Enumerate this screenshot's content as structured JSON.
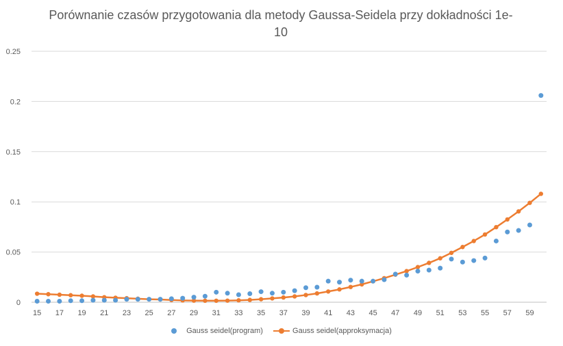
{
  "chart_data": {
    "type": "scatter",
    "title": "Porównanie czasów przygotowania dla metody Gaussa-Seidela przy dokładności 1e-\n10",
    "xlabel": "",
    "ylabel": "",
    "x": [
      15,
      16,
      17,
      18,
      19,
      20,
      21,
      22,
      23,
      24,
      25,
      26,
      27,
      28,
      29,
      30,
      31,
      32,
      33,
      34,
      35,
      36,
      37,
      38,
      39,
      40,
      41,
      42,
      43,
      44,
      45,
      46,
      47,
      48,
      49,
      50,
      51,
      52,
      53,
      54,
      55,
      56,
      57,
      58,
      59,
      60
    ],
    "x_tick_labels": [
      "15",
      "17",
      "19",
      "21",
      "23",
      "25",
      "27",
      "29",
      "31",
      "33",
      "35",
      "37",
      "39",
      "41",
      "43",
      "45",
      "47",
      "49",
      "51",
      "53",
      "55",
      "57",
      "59"
    ],
    "y_tick_labels": [
      "0",
      "0.05",
      "0.1",
      "0.15",
      "0.2",
      "0.25"
    ],
    "ylim": [
      0,
      0.25
    ],
    "xlim": [
      15,
      60
    ],
    "grid": true,
    "legend_position": "bottom",
    "series": [
      {
        "name": "Gauss seidel(program)",
        "style": "markers",
        "color": "#5B9BD5",
        "values": [
          0.001,
          0.001,
          0.001,
          0.0015,
          0.0015,
          0.002,
          0.002,
          0.002,
          0.003,
          0.003,
          0.003,
          0.003,
          0.0035,
          0.004,
          0.005,
          0.006,
          0.01,
          0.009,
          0.0075,
          0.0085,
          0.0105,
          0.009,
          0.01,
          0.0115,
          0.0145,
          0.015,
          0.021,
          0.02,
          0.022,
          0.021,
          0.021,
          0.0225,
          0.028,
          0.027,
          0.031,
          0.032,
          0.034,
          0.043,
          0.04,
          0.0415,
          0.044,
          0.061,
          0.07,
          0.0715,
          0.077,
          0.206
        ]
      },
      {
        "name": "Gauss seidel(approksymacja)",
        "style": "line-markers",
        "color": "#ED7D31",
        "values": [
          0.0085,
          0.008,
          0.0075,
          0.007,
          0.0065,
          0.0058,
          0.005,
          0.0045,
          0.004,
          0.0035,
          0.003,
          0.0027,
          0.0022,
          0.0018,
          0.0016,
          0.0015,
          0.0015,
          0.0016,
          0.0019,
          0.0023,
          0.003,
          0.0038,
          0.0047,
          0.0058,
          0.0072,
          0.0088,
          0.0107,
          0.0128,
          0.0152,
          0.0178,
          0.0208,
          0.024,
          0.0275,
          0.031,
          0.035,
          0.0392,
          0.0438,
          0.0492,
          0.055,
          0.061,
          0.0675,
          0.0748,
          0.0825,
          0.0905,
          0.099,
          0.108
        ]
      }
    ]
  }
}
